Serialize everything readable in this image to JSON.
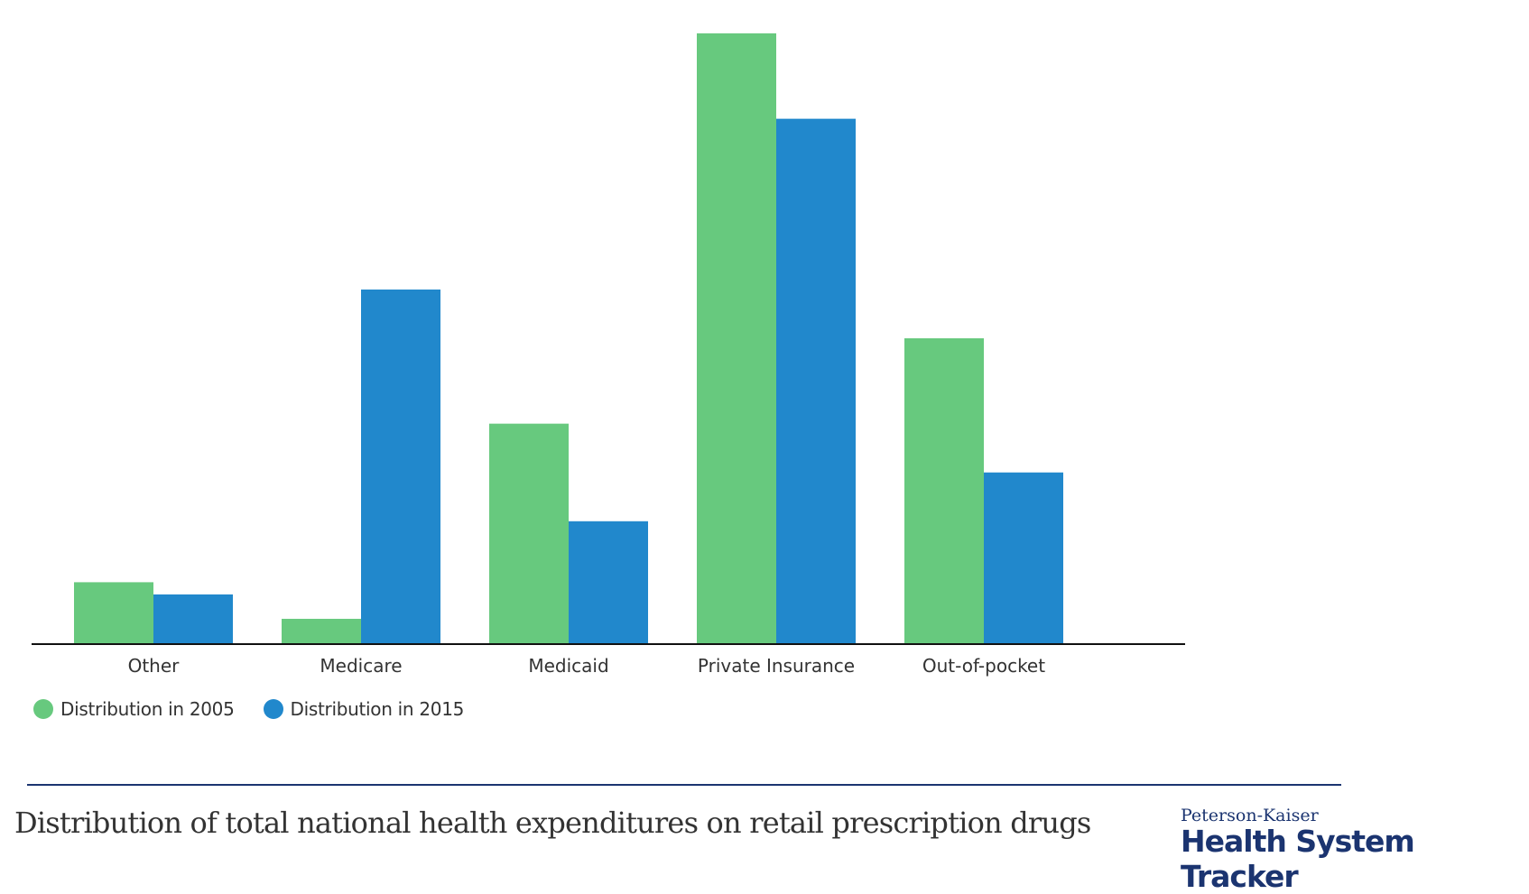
{
  "chart_data": {
    "type": "bar",
    "title": "Distribution of total national health expenditures on retail prescription drugs",
    "categories": [
      "Other",
      "Medicare",
      "Medicaid",
      "Private Insurance",
      "Out-of-pocket"
    ],
    "series": [
      {
        "name": "Distribution in 2005",
        "color": "#67c97e",
        "values": [
          5,
          2,
          18,
          50,
          25
        ]
      },
      {
        "name": "Distribution in 2015",
        "color": "#2188cc",
        "values": [
          4,
          29,
          10,
          43,
          14
        ]
      }
    ],
    "xlabel": "",
    "ylabel": "",
    "ylim": [
      0,
      50
    ],
    "grid": false,
    "legend": "bottom-left"
  },
  "logo": {
    "line1": "Peterson-Kaiser",
    "line2": "Health System Tracker",
    "color": "#1b3470"
  }
}
